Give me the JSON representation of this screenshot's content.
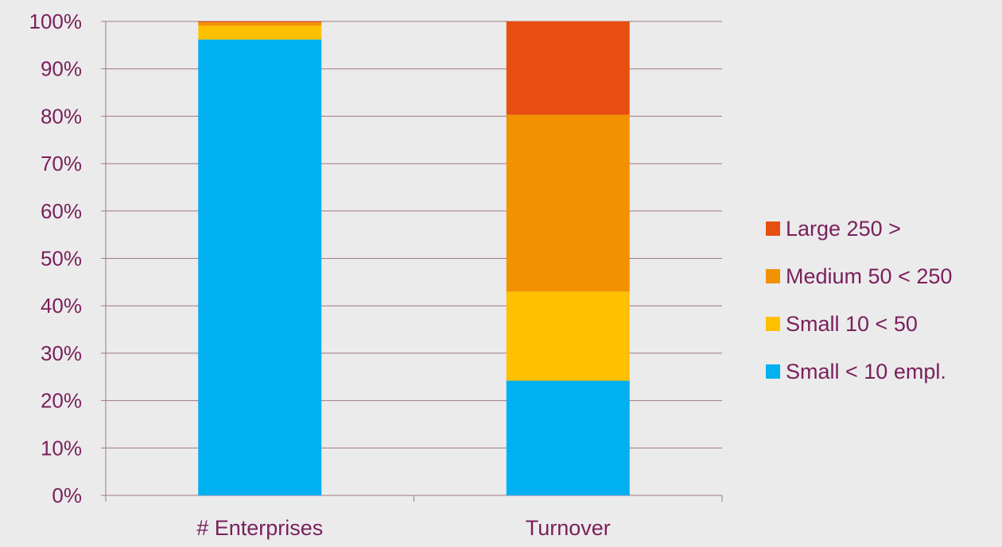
{
  "chart_data": {
    "type": "bar",
    "stacked": true,
    "percent_axis": true,
    "categories": [
      "# Enterprises",
      "Turnover"
    ],
    "series": [
      {
        "name": "Small < 10 empl.",
        "color": "#00b0f0",
        "values": [
          96.2,
          24.2
        ]
      },
      {
        "name": "Small 10 < 50",
        "color": "#ffc000",
        "values": [
          2.9,
          18.8
        ]
      },
      {
        "name": "Medium 50 < 250",
        "color": "#f29200",
        "values": [
          0.7,
          37.3
        ]
      },
      {
        "name": "Large 250 >",
        "color": "#e84e0f",
        "values": [
          0.2,
          19.7
        ]
      }
    ],
    "ylim": [
      0,
      100
    ],
    "yticks": [
      0,
      10,
      20,
      30,
      40,
      50,
      60,
      70,
      80,
      90,
      100
    ],
    "ytick_labels": [
      "0%",
      "10%",
      "20%",
      "30%",
      "40%",
      "50%",
      "60%",
      "70%",
      "80%",
      "90%",
      "100%"
    ],
    "grid": true,
    "legend_position": "right",
    "legend_order": [
      "Large 250 >",
      "Medium 50 < 250",
      "Small 10 < 50",
      "Small < 10 empl."
    ],
    "colors": {
      "axis": "#a0787f",
      "text": "#7a1f5c",
      "background": "#ebebeb"
    }
  }
}
